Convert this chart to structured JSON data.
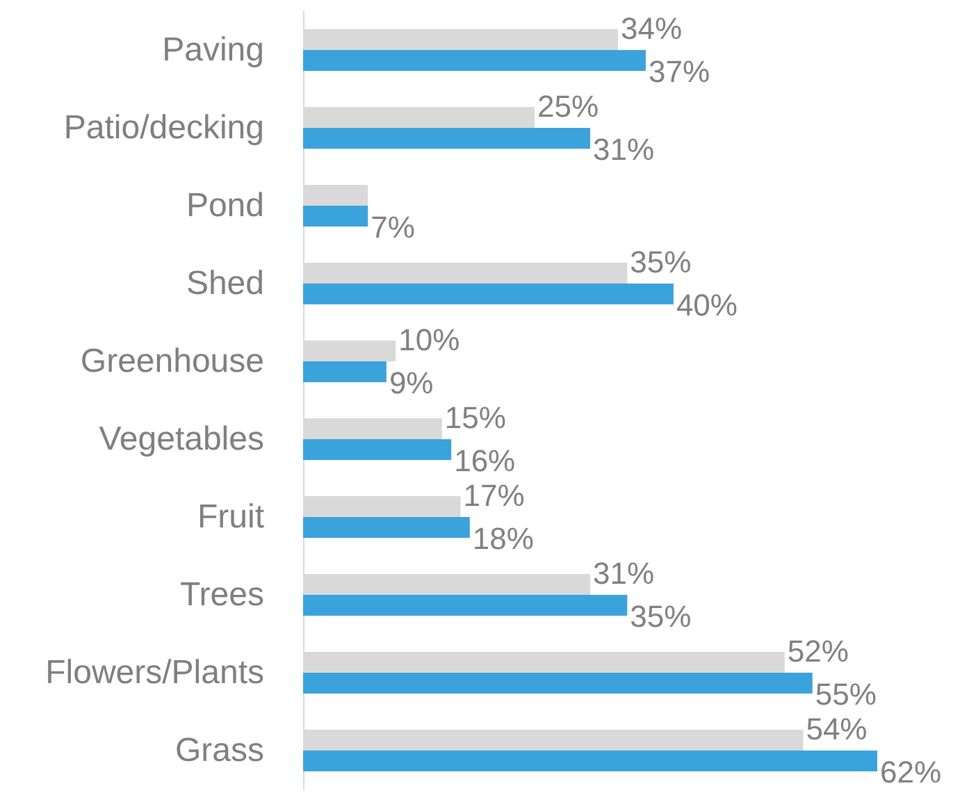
{
  "chart_data": {
    "type": "bar",
    "orientation": "horizontal",
    "categories": [
      "Paving",
      "Patio/decking",
      "Pond",
      "Shed",
      "Greenhouse",
      "Vegetables",
      "Fruit",
      "Trees",
      "Flowers/Plants",
      "Grass"
    ],
    "series": [
      {
        "color": "#d9d9d9",
        "values": [
          34,
          25,
          7,
          35,
          10,
          15,
          17,
          31,
          52,
          54
        ],
        "value_labels": [
          "34%",
          "25%",
          null,
          "35%",
          "10%",
          "15%",
          "17%",
          "31%",
          "52%",
          "54%"
        ]
      },
      {
        "color": "#3ba3dc",
        "values": [
          37,
          31,
          7,
          40,
          9,
          16,
          18,
          35,
          55,
          62
        ],
        "value_labels": [
          "37%",
          "31%",
          "7%",
          "40%",
          "9%",
          "16%",
          "18%",
          "35%",
          "55%",
          "62%"
        ]
      }
    ],
    "tick_labels": "y",
    "grid": false
  }
}
